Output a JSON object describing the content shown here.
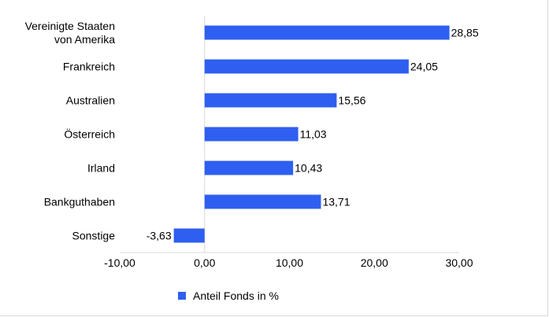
{
  "chart_data": {
    "type": "bar",
    "orientation": "horizontal",
    "categories": [
      [
        "Vereinigte Staaten",
        "von Amerika"
      ],
      [
        "Frankreich"
      ],
      [
        "Australien"
      ],
      [
        "Österreich"
      ],
      [
        "Irland"
      ],
      [
        "Bankguthaben"
      ],
      [
        "Sonstige"
      ]
    ],
    "series": [
      {
        "name": "Anteil Fonds in %",
        "values": [
          28.85,
          24.05,
          15.56,
          11.03,
          10.43,
          13.71,
          -3.63
        ],
        "labels": [
          "28,85",
          "24,05",
          "15,56",
          "11,03",
          "10,43",
          "13,71",
          "-3,63"
        ],
        "color": "#2e5ff0"
      }
    ],
    "xlim": [
      -10,
      30
    ],
    "xticks": [
      -10,
      0,
      10,
      20,
      30
    ],
    "xtick_labels": [
      "-10,00",
      "0,00",
      "10,00",
      "20,00",
      "30,00"
    ],
    "grid": false,
    "legend_position": "bottom-center"
  }
}
